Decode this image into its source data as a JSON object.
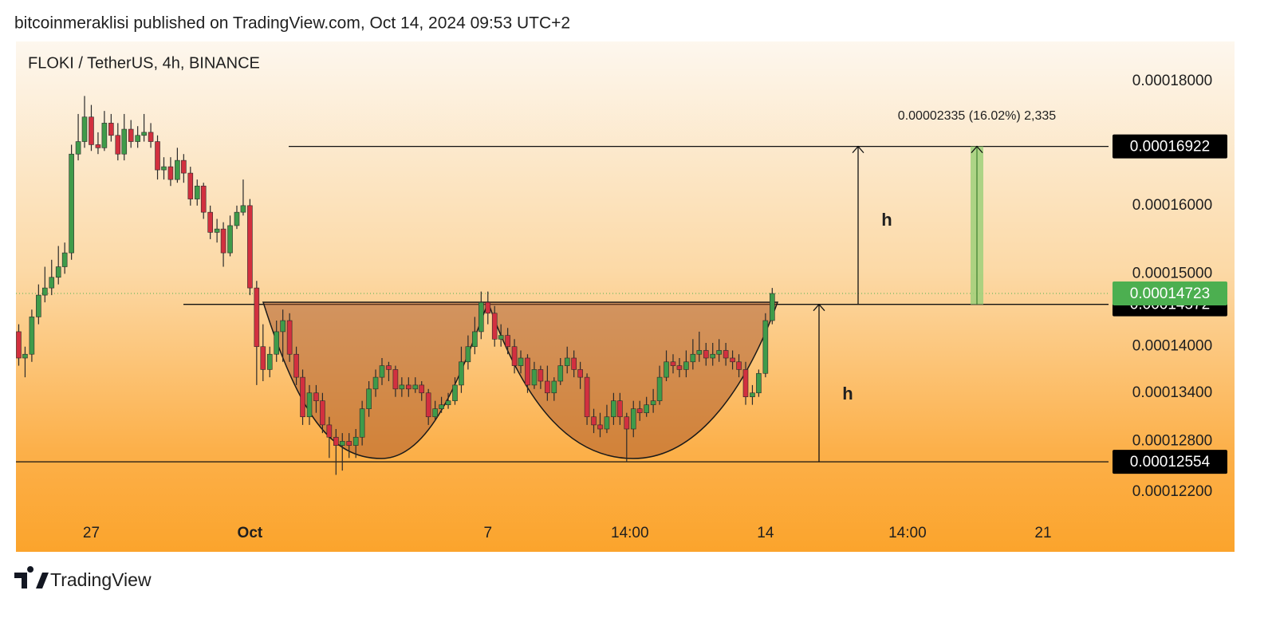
{
  "header": {
    "text": "bitcoinmeraklisi published on TradingView.com, Oct 14, 2024 09:53 UTC+2"
  },
  "chart_data": {
    "type": "candlestick",
    "title": "FLOKI / TetherUS, 4h, BINANCE",
    "log_scale": true,
    "up_color": "#3f9b4a",
    "down_color": "#d2303f",
    "ylim": [
      0.000119,
      0.0001869
    ],
    "yticks": [
      {
        "value": 0.00018,
        "label": "0.00018000"
      },
      {
        "value": 0.00016,
        "label": "0.00016000"
      },
      {
        "value": 0.00015,
        "label": "0.00015000"
      },
      {
        "value": 0.00014,
        "label": "0.00014000"
      },
      {
        "value": 0.000134,
        "label": "0.00013400"
      },
      {
        "value": 0.000128,
        "label": "0.00012800"
      },
      {
        "value": 0.000122,
        "label": "0.00012200"
      }
    ],
    "xlim": [
      25.1,
      52.65
    ],
    "xticks": [
      {
        "value": 27,
        "label": "27"
      },
      {
        "value": 31,
        "label": "Oct"
      },
      {
        "value": 37,
        "label": "7"
      },
      {
        "value": 40.58,
        "label": "14:00"
      },
      {
        "value": 44,
        "label": "14"
      },
      {
        "value": 47.58,
        "label": "14:00"
      },
      {
        "value": 51,
        "label": "21"
      }
    ],
    "x": [
      25.17,
      25.33,
      25.5,
      25.67,
      25.83,
      26,
      26.17,
      26.33,
      26.5,
      26.67,
      26.83,
      27,
      27.17,
      27.33,
      27.5,
      27.67,
      27.83,
      28,
      28.17,
      28.33,
      28.5,
      28.67,
      28.83,
      29,
      29.17,
      29.33,
      29.5,
      29.67,
      29.83,
      30,
      30.17,
      30.33,
      30.5,
      30.67,
      30.83,
      31,
      31.17,
      31.33,
      31.5,
      31.67,
      31.83,
      32,
      32.17,
      32.33,
      32.5,
      32.67,
      32.83,
      33,
      33.17,
      33.33,
      33.5,
      33.67,
      33.83,
      34,
      34.17,
      34.33,
      34.5,
      34.67,
      34.83,
      35,
      35.17,
      35.33,
      35.5,
      35.67,
      35.83,
      36,
      36.17,
      36.33,
      36.5,
      36.67,
      36.83,
      37,
      37.17,
      37.33,
      37.5,
      37.67,
      37.83,
      38,
      38.17,
      38.33,
      38.5,
      38.67,
      38.83,
      39,
      39.17,
      39.33,
      39.5,
      39.67,
      39.83,
      40,
      40.17,
      40.33,
      40.5,
      40.67,
      40.83,
      41,
      41.17,
      41.33,
      41.5,
      41.67,
      41.83,
      42,
      42.17,
      42.33,
      42.5,
      42.67,
      42.83,
      43,
      43.17,
      43.33,
      43.5,
      43.67,
      43.83,
      44,
      44.17
    ],
    "open": [
      0.000142,
      0.0001385,
      0.000139,
      0.000144,
      0.000147,
      0.000148,
      0.0001495,
      0.000151,
      0.000153,
      0.000168,
      0.00017,
      0.000174,
      0.0001695,
      0.000169,
      0.000173,
      0.000171,
      0.000168,
      0.000172,
      0.00017,
      0.000171,
      0.0001715,
      0.00017,
      0.0001655,
      0.000166,
      0.000164,
      0.000167,
      0.000165,
      0.000161,
      0.000163,
      0.000159,
      0.000156,
      0.0001565,
      0.000153,
      0.000157,
      0.000159,
      0.00016,
      0.000148,
      0.00014,
      0.000137,
      0.000139,
      0.000142,
      0.0001435,
      0.000139,
      0.000136,
      0.000131,
      0.000134,
      0.000133,
      0.00013,
      0.0001285,
      0.0001275,
      0.000128,
      0.0001275,
      0.0001285,
      0.000132,
      0.0001345,
      0.000136,
      0.0001375,
      0.000137,
      0.0001345,
      0.000135,
      0.0001345,
      0.000135,
      0.000134,
      0.000131,
      0.000132,
      0.0001325,
      0.000133,
      0.000135,
      0.000138,
      0.00014,
      0.000142,
      0.000146,
      0.0001445,
      0.000141,
      0.0001415,
      0.00014,
      0.0001375,
      0.0001385,
      0.000135,
      0.000137,
      0.0001355,
      0.000134,
      0.0001355,
      0.0001375,
      0.0001385,
      0.000137,
      0.000136,
      0.000131,
      0.00013,
      0.0001295,
      0.000131,
      0.000133,
      0.000131,
      0.0001295,
      0.000132,
      0.0001315,
      0.0001325,
      0.000133,
      0.000136,
      0.000138,
      0.0001375,
      0.000137,
      0.000138,
      0.000139,
      0.0001395,
      0.0001385,
      0.000139,
      0.0001395,
      0.0001385,
      0.000138,
      0.000137,
      0.0001335,
      0.000134,
      0.0001365,
      0.0001435
    ],
    "high": [
      0.000143,
      0.00014,
      0.000145,
      0.0001485,
      0.000151,
      0.000152,
      0.000154,
      0.0001545,
      0.0001695,
      0.0001745,
      0.0001775,
      0.000176,
      0.0001715,
      0.000175,
      0.0001745,
      0.000173,
      0.0001745,
      0.0001735,
      0.0001725,
      0.0001745,
      0.000173,
      0.000171,
      0.0001675,
      0.0001675,
      0.000169,
      0.000168,
      0.000166,
      0.000164,
      0.0001635,
      0.00016,
      0.000158,
      0.0001575,
      0.0001585,
      0.00016,
      0.000164,
      0.000161,
      0.000149,
      0.000143,
      0.00014,
      0.0001435,
      0.000145,
      0.0001445,
      0.00014,
      0.000137,
      0.000135,
      0.000135,
      0.000134,
      0.000131,
      0.0001295,
      0.000129,
      0.000129,
      0.0001295,
      0.000133,
      0.0001355,
      0.000137,
      0.0001385,
      0.000138,
      0.0001375,
      0.000136,
      0.000136,
      0.000136,
      0.0001355,
      0.0001345,
      0.000133,
      0.0001335,
      0.000134,
      0.000136,
      0.00014,
      0.0001415,
      0.000144,
      0.0001475,
      0.0001475,
      0.0001455,
      0.000143,
      0.0001425,
      0.000141,
      0.0001395,
      0.000139,
      0.000138,
      0.0001375,
      0.0001375,
      0.000136,
      0.0001385,
      0.00014,
      0.0001395,
      0.000138,
      0.0001365,
      0.000132,
      0.0001315,
      0.0001325,
      0.000134,
      0.000134,
      0.0001315,
      0.000133,
      0.000133,
      0.0001335,
      0.0001345,
      0.0001375,
      0.0001395,
      0.000139,
      0.0001385,
      0.0001395,
      0.000141,
      0.000142,
      0.0001405,
      0.0001405,
      0.000141,
      0.0001405,
      0.0001395,
      0.000139,
      0.000138,
      0.000135,
      0.000137,
      0.0001445,
      0.000148
    ],
    "low": [
      0.0001375,
      0.000136,
      0.000138,
      0.000143,
      0.000146,
      0.000147,
      0.0001485,
      0.00015,
      0.000152,
      0.000167,
      0.000169,
      0.0001685,
      0.000168,
      0.0001685,
      0.00017,
      0.000167,
      0.000167,
      0.000169,
      0.000169,
      0.00017,
      0.000169,
      0.000164,
      0.000164,
      0.000163,
      0.0001635,
      0.0001635,
      0.00016,
      0.00016,
      0.000158,
      0.000155,
      0.0001545,
      0.000151,
      0.0001525,
      0.0001565,
      0.0001585,
      0.000147,
      0.000135,
      0.0001355,
      0.000136,
      0.000138,
      0.000138,
      0.000138,
      0.000135,
      0.00013,
      0.00013,
      0.0001315,
      0.000129,
      0.000126,
      0.000124,
      0.0001245,
      0.000126,
      0.000126,
      0.0001275,
      0.000131,
      0.0001335,
      0.000135,
      0.0001355,
      0.0001335,
      0.0001335,
      0.0001335,
      0.000134,
      0.000133,
      0.00013,
      0.0001305,
      0.0001315,
      0.000132,
      0.0001325,
      0.000134,
      0.000137,
      0.000139,
      0.000141,
      0.000143,
      0.00014,
      0.00014,
      0.000139,
      0.0001365,
      0.0001365,
      0.000134,
      0.0001345,
      0.0001345,
      0.000133,
      0.000133,
      0.000135,
      0.0001365,
      0.000136,
      0.0001345,
      0.00013,
      0.000129,
      0.0001285,
      0.000129,
      0.00013,
      0.00013,
      0.0001255,
      0.0001285,
      0.0001305,
      0.000131,
      0.0001315,
      0.0001325,
      0.0001355,
      0.0001365,
      0.000136,
      0.000136,
      0.000137,
      0.000138,
      0.0001375,
      0.0001375,
      0.000138,
      0.0001375,
      0.000137,
      0.000136,
      0.0001325,
      0.0001325,
      0.0001335,
      0.000136,
      0.000143
    ],
    "close": [
      0.0001385,
      0.000139,
      0.000144,
      0.000147,
      0.000148,
      0.0001495,
      0.000151,
      0.000153,
      0.000168,
      0.00017,
      0.000174,
      0.0001695,
      0.000169,
      0.000173,
      0.000171,
      0.000168,
      0.000172,
      0.00017,
      0.000171,
      0.0001715,
      0.00017,
      0.0001655,
      0.000166,
      0.000164,
      0.000167,
      0.000165,
      0.000161,
      0.000163,
      0.000159,
      0.000156,
      0.0001565,
      0.000153,
      0.000157,
      0.000159,
      0.00016,
      0.000148,
      0.00014,
      0.000137,
      0.000139,
      0.000142,
      0.0001435,
      0.000139,
      0.000136,
      0.000131,
      0.000134,
      0.000133,
      0.00013,
      0.0001285,
      0.0001275,
      0.000128,
      0.0001275,
      0.0001285,
      0.000132,
      0.0001345,
      0.000136,
      0.0001375,
      0.000137,
      0.0001345,
      0.000135,
      0.0001345,
      0.000135,
      0.000134,
      0.000131,
      0.000132,
      0.0001325,
      0.000133,
      0.000135,
      0.000138,
      0.00014,
      0.000142,
      0.000146,
      0.0001445,
      0.000141,
      0.0001415,
      0.00014,
      0.0001375,
      0.0001385,
      0.000135,
      0.000137,
      0.0001355,
      0.000134,
      0.0001355,
      0.0001375,
      0.0001385,
      0.000137,
      0.000136,
      0.000131,
      0.00013,
      0.0001295,
      0.000131,
      0.000133,
      0.000131,
      0.0001295,
      0.000132,
      0.0001315,
      0.0001325,
      0.000133,
      0.000136,
      0.000138,
      0.0001375,
      0.000137,
      0.000138,
      0.000139,
      0.0001395,
      0.0001385,
      0.000139,
      0.0001395,
      0.0001385,
      0.000138,
      0.000137,
      0.0001335,
      0.000134,
      0.0001365,
      0.0001435,
      0.00014723
    ],
    "last_color": "#4caf50",
    "levels": [
      {
        "value": 0.00016922
      },
      {
        "value": 0.00014572
      },
      {
        "value": 0.00012554
      }
    ],
    "measure": {
      "label": "0.00002335 (16.02%) 2,335",
      "color": "#9fd07a"
    },
    "annotations": [
      "h",
      "h"
    ]
  },
  "footer": {
    "brand": "TradingView"
  }
}
